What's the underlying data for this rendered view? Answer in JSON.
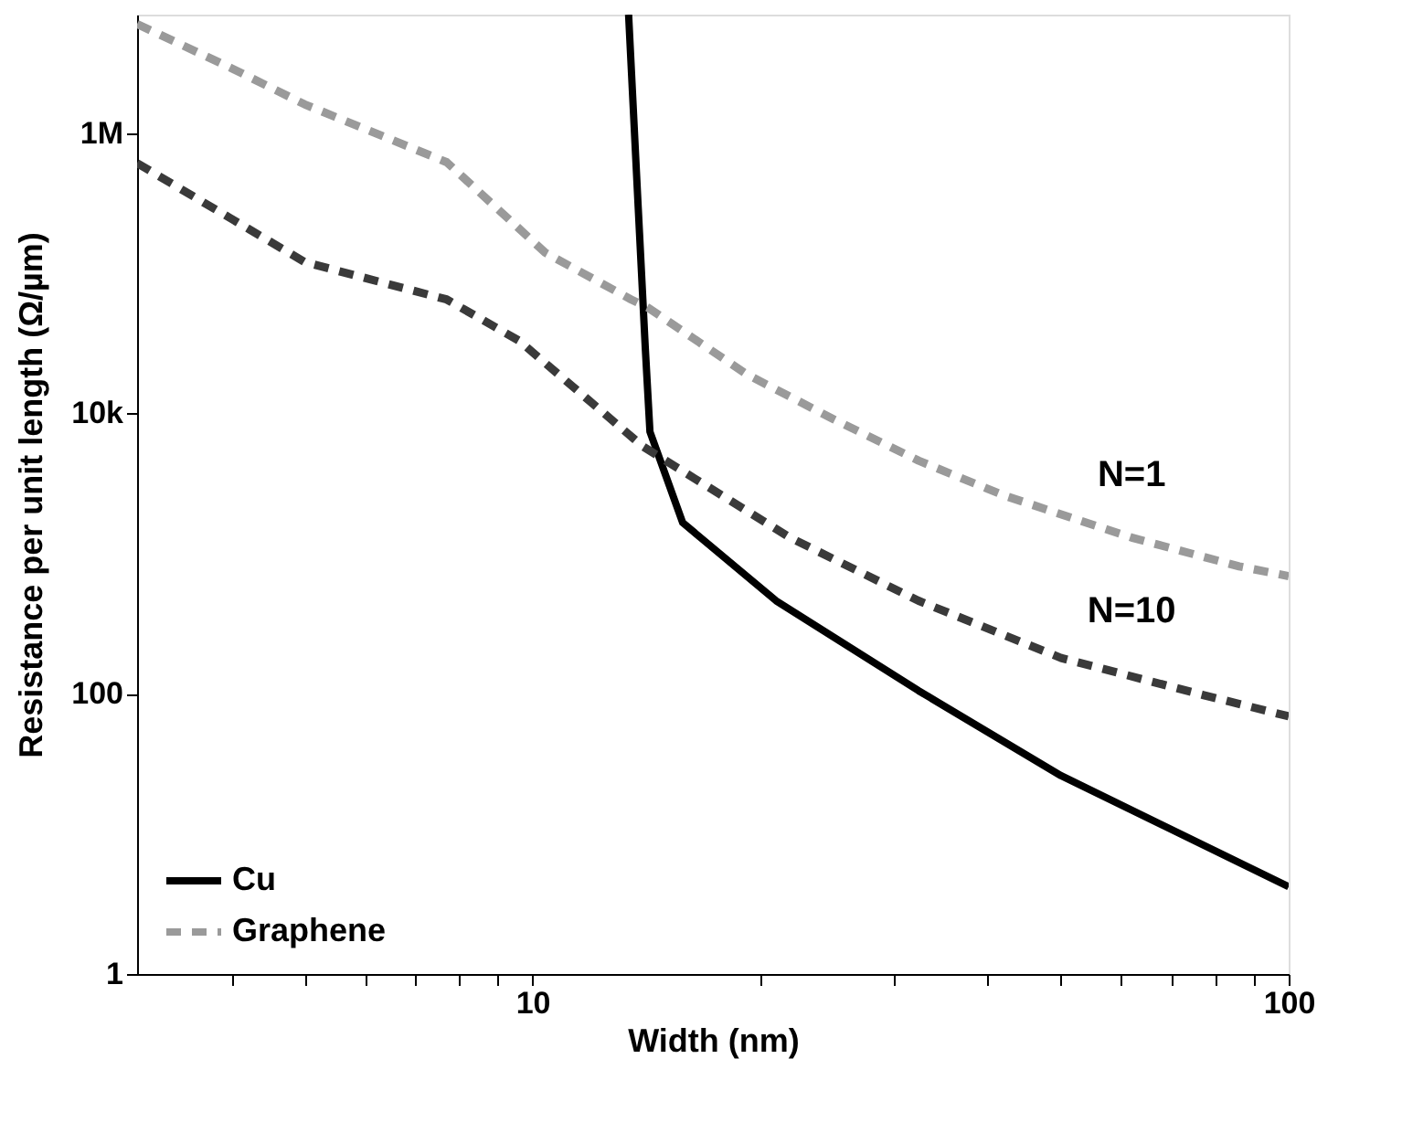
{
  "chart_data": {
    "type": "line",
    "xlabel": "Width (nm)",
    "ylabel": "Resistance per unit length (Ω/µm)",
    "log": "xy",
    "xlim": [
      3,
      100
    ],
    "ylim": [
      1,
      7000000
    ],
    "xticks": [
      {
        "value": 4,
        "label": null
      },
      {
        "value": 5,
        "label": null
      },
      {
        "value": 6,
        "label": null
      },
      {
        "value": 7,
        "label": null
      },
      {
        "value": 8,
        "label": null
      },
      {
        "value": 9,
        "label": null
      },
      10,
      {
        "value": 20,
        "label": null
      },
      {
        "value": 30,
        "label": null
      },
      {
        "value": 40,
        "label": null
      },
      {
        "value": 50,
        "label": null
      },
      {
        "value": 60,
        "label": null
      },
      {
        "value": 70,
        "label": null
      },
      {
        "value": 80,
        "label": null
      },
      {
        "value": 90,
        "label": null
      },
      100
    ],
    "yticks": [
      1,
      100,
      {
        "value": 10000,
        "label": "10k"
      },
      {
        "value": 1000000,
        "label": "1M"
      }
    ],
    "grid": false,
    "legend": "bottom left",
    "series": [
      {
        "name": "Cu",
        "color": "#000000",
        "line_style": "solid",
        "x": [
          13.4,
          13.8,
          14.1,
          14.3,
          15.8,
          21,
          32.4,
          50,
          100
        ],
        "values": [
          7000000,
          290000,
          29000,
          7400,
          1660,
          460,
          105,
          26,
          4.2
        ]
      },
      {
        "name": "Graphene",
        "color": "#9a9a9a",
        "line_style": "dashed",
        "x": [
          3,
          4,
          5,
          7.7,
          10.4,
          13.5,
          14.2,
          19.2,
          25,
          32.4,
          42,
          62,
          86,
          100
        ],
        "values": [
          6000000,
          2900000,
          1600000,
          620000,
          140000,
          65000,
          57000,
          19000,
          9100,
          4600,
          2600,
          1300,
          810,
          690
        ]
      },
      {
        "color": "#3a3a3a",
        "line_style": "dashed",
        "x": [
          3,
          5,
          7.7,
          9.6,
          14,
          21.9,
          32.4,
          50,
          77,
          100
        ],
        "values": [
          610000,
          120000,
          65000,
          33000,
          5800,
          1300,
          460,
          180,
          98,
          69
        ]
      }
    ],
    "annotations": [
      {
        "text": "N=1",
        "x": 62,
        "y": 1300
      },
      {
        "text": "N=10",
        "x": 62,
        "y": 140
      }
    ]
  }
}
